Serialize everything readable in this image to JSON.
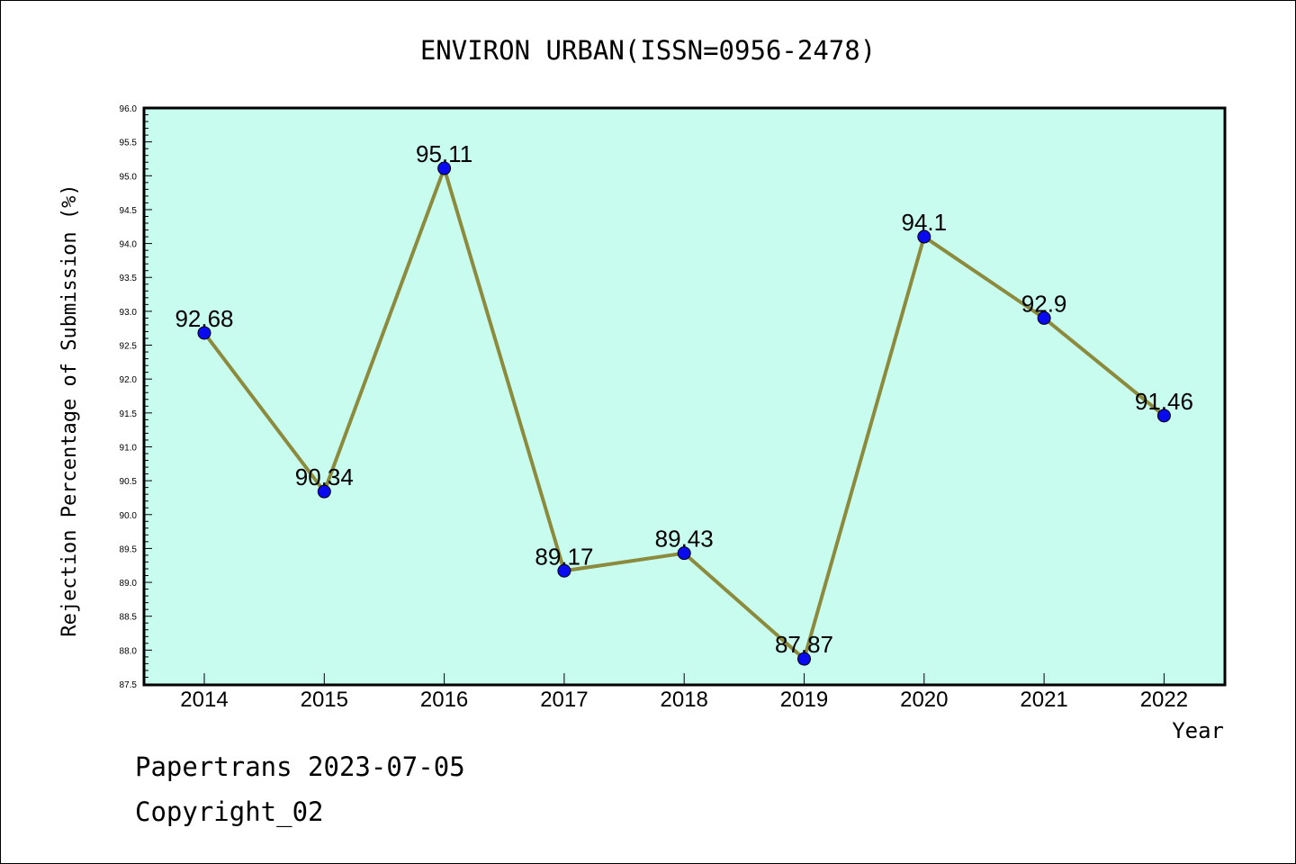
{
  "chart_data": {
    "type": "line",
    "title": "ENVIRON URBAN(ISSN=0956-2478)",
    "xlabel": "Year",
    "ylabel": "Rejection Percentage of Submission (%)",
    "categories": [
      "2014",
      "2015",
      "2016",
      "2017",
      "2018",
      "2019",
      "2020",
      "2021",
      "2022"
    ],
    "values": [
      92.68,
      90.34,
      95.11,
      89.17,
      89.43,
      87.87,
      94.1,
      92.9,
      91.46
    ],
    "data_labels": [
      "92.68",
      "90.34",
      "95.11",
      "89.17",
      "89.43",
      "87.87",
      "94.1",
      "92.9",
      "91.46"
    ],
    "ylim": [
      87.5,
      96.0
    ],
    "yticks": [
      "87.5",
      "88.0",
      "88.5",
      "89.0",
      "89.5",
      "90.0",
      "90.5",
      "91.0",
      "91.5",
      "92.0",
      "92.5",
      "93.0",
      "93.5",
      "94.0",
      "94.5",
      "95.0",
      "95.5",
      "96.0"
    ],
    "grid": false,
    "colors": {
      "plot_background": "#c8fcee",
      "line": "#8c8a3c",
      "marker": "#0a0af0"
    }
  },
  "footer": {
    "line1": "Papertrans 2023-07-05",
    "line2": "Copyright_02"
  }
}
